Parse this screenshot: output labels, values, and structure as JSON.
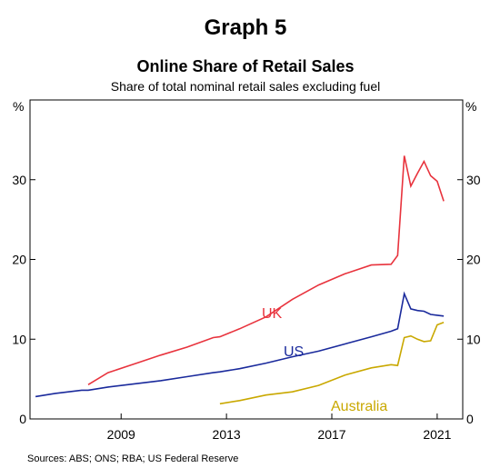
{
  "chart_data": {
    "type": "line",
    "title": "Graph 5",
    "subtitle": "Online Share of Retail Sales",
    "description": "Share of total nominal retail sales excluding fuel",
    "y_unit": "%",
    "y2_unit": "%",
    "source": "Sources: ABS; ONS; RBA; US Federal Reserve",
    "x": [
      2006.25,
      2007.0,
      2008.0,
      2008.25,
      2009.0,
      2010.0,
      2011.0,
      2012.0,
      2013.0,
      2013.25,
      2014.0,
      2015.0,
      2016.0,
      2017.0,
      2018.0,
      2019.0,
      2019.75,
      2020.0,
      2020.25,
      2020.5,
      2020.75,
      2021.0,
      2021.25,
      2021.5,
      2021.75
    ],
    "series": [
      {
        "name": "UK",
        "color": "#e8333d",
        "values": [
          null,
          null,
          null,
          4.3,
          5.8,
          6.9,
          8.0,
          9.0,
          10.2,
          10.3,
          11.3,
          12.8,
          15.0,
          16.8,
          18.2,
          19.3,
          19.4,
          20.5,
          33.0,
          29.2,
          30.8,
          32.3,
          30.5,
          29.8,
          27.3
        ]
      },
      {
        "name": "US",
        "color": "#1a2a9c",
        "values": [
          2.8,
          3.2,
          3.6,
          3.6,
          4.0,
          4.4,
          4.8,
          5.3,
          5.8,
          5.9,
          6.3,
          7.0,
          7.8,
          8.5,
          9.4,
          10.3,
          11.0,
          11.3,
          15.7,
          13.8,
          13.6,
          13.5,
          13.1,
          13.0,
          12.9
        ]
      },
      {
        "name": "Australia",
        "color": "#c9a800",
        "values": [
          null,
          null,
          null,
          null,
          null,
          null,
          null,
          null,
          null,
          1.9,
          2.3,
          3.0,
          3.4,
          4.2,
          5.5,
          6.4,
          6.8,
          6.7,
          10.2,
          10.4,
          10.0,
          9.7,
          9.8,
          11.8,
          12.1
        ]
      }
    ],
    "xlim": [
      2006.04,
      2022.47
    ],
    "xticks": [
      {
        "value": 2009.5,
        "label": "2009"
      },
      {
        "value": 2013.5,
        "label": "2013"
      },
      {
        "value": 2017.5,
        "label": "2017"
      },
      {
        "value": 2021.5,
        "label": "2021"
      }
    ],
    "ylim": [
      0,
      40
    ],
    "yticks": [
      0,
      10,
      20,
      30
    ],
    "y2lim": [
      0,
      40
    ],
    "y2ticks": [
      0,
      10,
      20,
      30
    ]
  }
}
